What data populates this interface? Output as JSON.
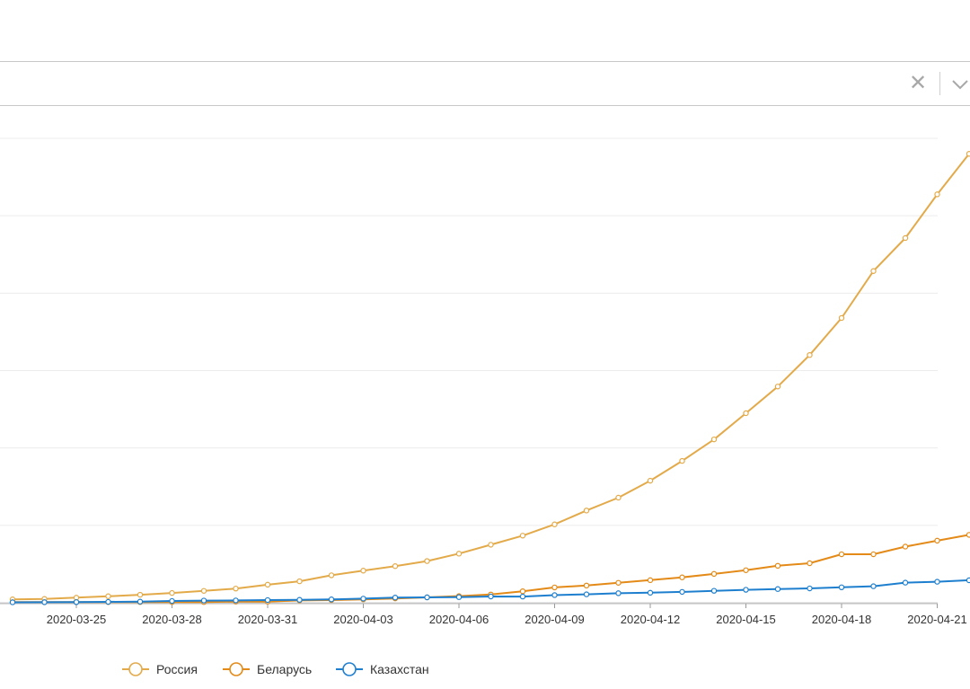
{
  "selector": {
    "clear_icon": "close-icon",
    "dropdown_icon": "chevron-down-icon"
  },
  "chart_data": {
    "type": "line",
    "x": [
      "2020-03-23",
      "2020-03-24",
      "2020-03-25",
      "2020-03-26",
      "2020-03-27",
      "2020-03-28",
      "2020-03-29",
      "2020-03-30",
      "2020-03-31",
      "2020-04-01",
      "2020-04-02",
      "2020-04-03",
      "2020-04-04",
      "2020-04-05",
      "2020-04-06",
      "2020-04-07",
      "2020-04-08",
      "2020-04-09",
      "2020-04-10",
      "2020-04-11",
      "2020-04-12",
      "2020-04-13",
      "2020-04-14",
      "2020-04-15",
      "2020-04-16",
      "2020-04-17",
      "2020-04-18",
      "2020-04-19",
      "2020-04-20",
      "2020-04-21",
      "2020-04-22"
    ],
    "xticks": [
      "2020-03-25",
      "2020-03-28",
      "2020-03-31",
      "2020-04-03",
      "2020-04-06",
      "2020-04-09",
      "2020-04-12",
      "2020-04-15",
      "2020-04-18",
      "2020-04-21"
    ],
    "ylim": [
      0,
      60000
    ],
    "grid": true,
    "legend_position": "bottom",
    "series": [
      {
        "name": "Россия",
        "color": "#e3aa4a",
        "values": [
          438,
          495,
          658,
          840,
          1036,
          1264,
          1534,
          1836,
          2337,
          2777,
          3548,
          4149,
          4731,
          5389,
          6343,
          7497,
          8672,
          10131,
          11917,
          13584,
          15770,
          18328,
          21102,
          24490,
          27938,
          32008,
          36793,
          42853,
          47121,
          52763,
          57999
        ]
      },
      {
        "name": "Беларусь",
        "color": "#e38a18",
        "values": [
          76,
          81,
          86,
          94,
          94,
          94,
          94,
          152,
          152,
          304,
          351,
          440,
          562,
          700,
          861,
          1066,
          1486,
          1981,
          2226,
          2578,
          2919,
          3281,
          3728,
          4204,
          4779,
          5106,
          6264,
          6264,
          7258,
          8022,
          8773
        ]
      },
      {
        "name": "Казахстан",
        "color": "#1f7fcf",
        "values": [
          60,
          72,
          81,
          111,
          150,
          228,
          284,
          302,
          343,
          380,
          435,
          531,
          670,
          697,
          727,
          812,
          802,
          990,
          1091,
          1232,
          1295,
          1402,
          1546,
          1676,
          1775,
          1852,
          1995,
          2135,
          2601,
          2717,
          2908
        ]
      }
    ]
  }
}
